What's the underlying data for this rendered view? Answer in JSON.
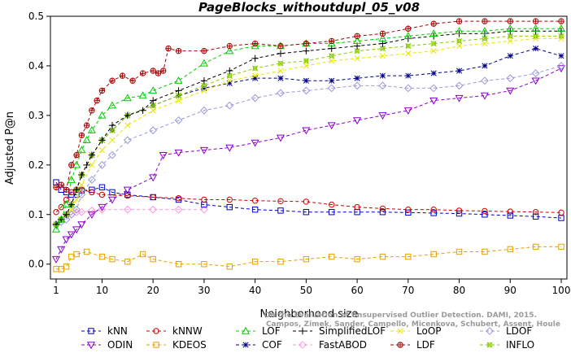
{
  "chart_data": {
    "type": "line",
    "title": "PageBlocks_withoutdupl_05_v08",
    "xlabel": "Neighborhood size",
    "ylabel": "Adjusted P@n",
    "xlim": [
      1,
      100
    ],
    "ylim": [
      -0.03,
      0.5
    ],
    "xticks": [
      1,
      10,
      20,
      30,
      40,
      50,
      60,
      70,
      80,
      90,
      100
    ],
    "yticks": [
      0.0,
      0.1,
      0.2,
      0.3,
      0.4,
      0.5
    ],
    "ytick_labels": [
      "0.0",
      "0.1",
      "0.2",
      "0.3",
      "0.4",
      "0.5"
    ],
    "grid": false,
    "legend_position": "bottom",
    "watermark": [
      "Campos, Zimek, Sander, Campello, Micenkova, Schubert, Assent, Houle",
      "On the Evaluation of Unsupervised Outlier Detection. DAMI, 2015."
    ],
    "series": [
      {
        "name": "kNN",
        "color": "#0000cc",
        "marker": "square",
        "x": [
          1,
          2,
          3,
          4,
          5,
          6,
          8,
          10,
          12,
          15,
          20,
          25,
          30,
          35,
          40,
          45,
          50,
          55,
          60,
          65,
          70,
          75,
          80,
          85,
          90,
          95,
          100
        ],
        "y": [
          0.165,
          0.15,
          0.145,
          0.14,
          0.14,
          0.148,
          0.15,
          0.155,
          0.145,
          0.14,
          0.135,
          0.13,
          0.12,
          0.115,
          0.11,
          0.108,
          0.105,
          0.105,
          0.105,
          0.105,
          0.104,
          0.103,
          0.102,
          0.1,
          0.098,
          0.096,
          0.093
        ]
      },
      {
        "name": "kNNW",
        "color": "#cc0000",
        "marker": "circle",
        "x": [
          1,
          2,
          3,
          4,
          5,
          6,
          8,
          10,
          15,
          20,
          25,
          30,
          35,
          40,
          45,
          50,
          55,
          60,
          65,
          70,
          75,
          80,
          85,
          90,
          95,
          100
        ],
        "y": [
          0.105,
          0.115,
          0.13,
          0.145,
          0.15,
          0.15,
          0.145,
          0.14,
          0.138,
          0.135,
          0.133,
          0.13,
          0.13,
          0.128,
          0.127,
          0.126,
          0.12,
          0.115,
          0.112,
          0.11,
          0.11,
          0.108,
          0.107,
          0.106,
          0.105,
          0.104
        ]
      },
      {
        "name": "LOF",
        "color": "#00cc00",
        "marker": "triangle",
        "x": [
          1,
          2,
          3,
          4,
          5,
          6,
          7,
          8,
          10,
          12,
          15,
          18,
          20,
          25,
          30,
          35,
          40,
          45,
          50,
          55,
          60,
          65,
          70,
          75,
          80,
          85,
          90,
          95,
          100
        ],
        "y": [
          0.07,
          0.09,
          0.12,
          0.17,
          0.2,
          0.23,
          0.25,
          0.27,
          0.3,
          0.32,
          0.335,
          0.34,
          0.35,
          0.37,
          0.405,
          0.43,
          0.44,
          0.44,
          0.445,
          0.445,
          0.45,
          0.455,
          0.46,
          0.465,
          0.47,
          0.47,
          0.475,
          0.475,
          0.475
        ]
      },
      {
        "name": "SimplifiedLOF",
        "color": "#000000",
        "marker": "plus",
        "x": [
          1,
          2,
          3,
          4,
          5,
          6,
          7,
          8,
          10,
          12,
          15,
          18,
          20,
          25,
          30,
          35,
          40,
          45,
          50,
          55,
          60,
          65,
          70,
          75,
          80,
          85,
          90,
          95,
          100
        ],
        "y": [
          0.08,
          0.09,
          0.1,
          0.12,
          0.15,
          0.18,
          0.2,
          0.22,
          0.25,
          0.28,
          0.3,
          0.31,
          0.33,
          0.35,
          0.37,
          0.39,
          0.415,
          0.425,
          0.43,
          0.435,
          0.44,
          0.445,
          0.455,
          0.46,
          0.465,
          0.465,
          0.47,
          0.47,
          0.47
        ]
      },
      {
        "name": "LoOP",
        "color": "#e6e600",
        "marker": "x",
        "x": [
          1,
          2,
          3,
          4,
          5,
          6,
          8,
          10,
          12,
          15,
          20,
          25,
          30,
          35,
          40,
          45,
          50,
          55,
          60,
          65,
          70,
          75,
          80,
          85,
          90,
          95,
          100
        ],
        "y": [
          0.08,
          0.09,
          0.1,
          0.11,
          0.13,
          0.16,
          0.2,
          0.23,
          0.25,
          0.28,
          0.31,
          0.33,
          0.35,
          0.37,
          0.38,
          0.39,
          0.4,
          0.41,
          0.415,
          0.42,
          0.425,
          0.43,
          0.44,
          0.445,
          0.45,
          0.455,
          0.455
        ]
      },
      {
        "name": "LDOF",
        "color": "#9999dd",
        "marker": "diamond",
        "x": [
          1,
          2,
          3,
          4,
          5,
          6,
          8,
          10,
          12,
          15,
          20,
          25,
          30,
          35,
          40,
          45,
          50,
          55,
          60,
          65,
          70,
          75,
          80,
          85,
          90,
          95,
          100
        ],
        "y": [
          0.08,
          0.085,
          0.09,
          0.1,
          0.11,
          0.14,
          0.17,
          0.2,
          0.22,
          0.25,
          0.27,
          0.29,
          0.31,
          0.32,
          0.335,
          0.345,
          0.35,
          0.355,
          0.36,
          0.36,
          0.355,
          0.355,
          0.36,
          0.37,
          0.375,
          0.385,
          0.4
        ]
      },
      {
        "name": "ODIN",
        "color": "#8800cc",
        "marker": "triangle-down",
        "x": [
          1,
          2,
          3,
          4,
          5,
          6,
          8,
          10,
          12,
          15,
          20,
          22,
          25,
          30,
          35,
          40,
          45,
          50,
          55,
          60,
          65,
          70,
          75,
          80,
          85,
          90,
          95,
          100
        ],
        "y": [
          0.01,
          0.03,
          0.05,
          0.06,
          0.07,
          0.08,
          0.1,
          0.115,
          0.13,
          0.15,
          0.175,
          0.22,
          0.225,
          0.23,
          0.235,
          0.245,
          0.255,
          0.27,
          0.28,
          0.29,
          0.3,
          0.31,
          0.33,
          0.335,
          0.34,
          0.35,
          0.37,
          0.395
        ]
      },
      {
        "name": "KDEOS",
        "color": "#e6a000",
        "marker": "square",
        "x": [
          1,
          2,
          3,
          4,
          5,
          7,
          10,
          12,
          15,
          18,
          20,
          25,
          30,
          35,
          40,
          45,
          50,
          55,
          60,
          65,
          70,
          75,
          80,
          85,
          90,
          95,
          100
        ],
        "y": [
          -0.01,
          -0.01,
          -0.005,
          0.015,
          0.02,
          0.025,
          0.015,
          0.01,
          0.005,
          0.02,
          0.01,
          0.0,
          0.0,
          -0.005,
          0.005,
          0.005,
          0.01,
          0.015,
          0.01,
          0.015,
          0.015,
          0.02,
          0.025,
          0.025,
          0.03,
          0.035,
          0.035
        ]
      },
      {
        "name": "COF",
        "color": "#000088",
        "marker": "asterisk",
        "x": [
          1,
          2,
          3,
          4,
          5,
          6,
          8,
          10,
          12,
          15,
          20,
          25,
          30,
          35,
          40,
          45,
          50,
          55,
          60,
          65,
          70,
          75,
          80,
          85,
          90,
          95,
          100
        ],
        "y": [
          0.08,
          0.09,
          0.1,
          0.12,
          0.15,
          0.18,
          0.22,
          0.25,
          0.27,
          0.3,
          0.32,
          0.34,
          0.355,
          0.365,
          0.375,
          0.375,
          0.37,
          0.37,
          0.375,
          0.38,
          0.38,
          0.385,
          0.39,
          0.4,
          0.42,
          0.435,
          0.42
        ]
      },
      {
        "name": "FastABOD",
        "color": "#ff99dd",
        "marker": "diamond",
        "x": [
          1,
          2,
          3,
          4,
          5,
          6,
          8,
          10,
          15,
          20,
          25,
          30
        ],
        "y": [
          0.08,
          0.09,
          0.1,
          0.1,
          0.105,
          0.105,
          0.108,
          0.11,
          0.11,
          0.11,
          0.11,
          0.11
        ]
      },
      {
        "name": "LDF",
        "color": "#aa0000",
        "marker": "circle-plus",
        "x": [
          1,
          2,
          3,
          4,
          5,
          6,
          7,
          8,
          9,
          10,
          12,
          14,
          16,
          18,
          20,
          21,
          22,
          23,
          25,
          30,
          35,
          40,
          45,
          50,
          55,
          60,
          65,
          70,
          75,
          80,
          85,
          90,
          95,
          100
        ],
        "y": [
          0.155,
          0.16,
          0.15,
          0.2,
          0.22,
          0.26,
          0.28,
          0.31,
          0.33,
          0.35,
          0.37,
          0.38,
          0.37,
          0.385,
          0.39,
          0.385,
          0.39,
          0.435,
          0.43,
          0.43,
          0.44,
          0.445,
          0.44,
          0.445,
          0.45,
          0.46,
          0.465,
          0.475,
          0.485,
          0.49,
          0.49,
          0.49,
          0.49,
          0.49
        ]
      },
      {
        "name": "INFLO",
        "color": "#88cc00",
        "marker": "star",
        "x": [
          1,
          2,
          3,
          4,
          5,
          6,
          8,
          10,
          12,
          15,
          20,
          25,
          30,
          35,
          40,
          45,
          50,
          55,
          60,
          65,
          70,
          75,
          80,
          85,
          90,
          95,
          100
        ],
        "y": [
          0.08,
          0.09,
          0.1,
          0.12,
          0.15,
          0.18,
          0.22,
          0.25,
          0.27,
          0.3,
          0.32,
          0.34,
          0.36,
          0.38,
          0.395,
          0.405,
          0.41,
          0.42,
          0.43,
          0.435,
          0.44,
          0.445,
          0.45,
          0.455,
          0.46,
          0.46,
          0.46
        ]
      }
    ]
  }
}
